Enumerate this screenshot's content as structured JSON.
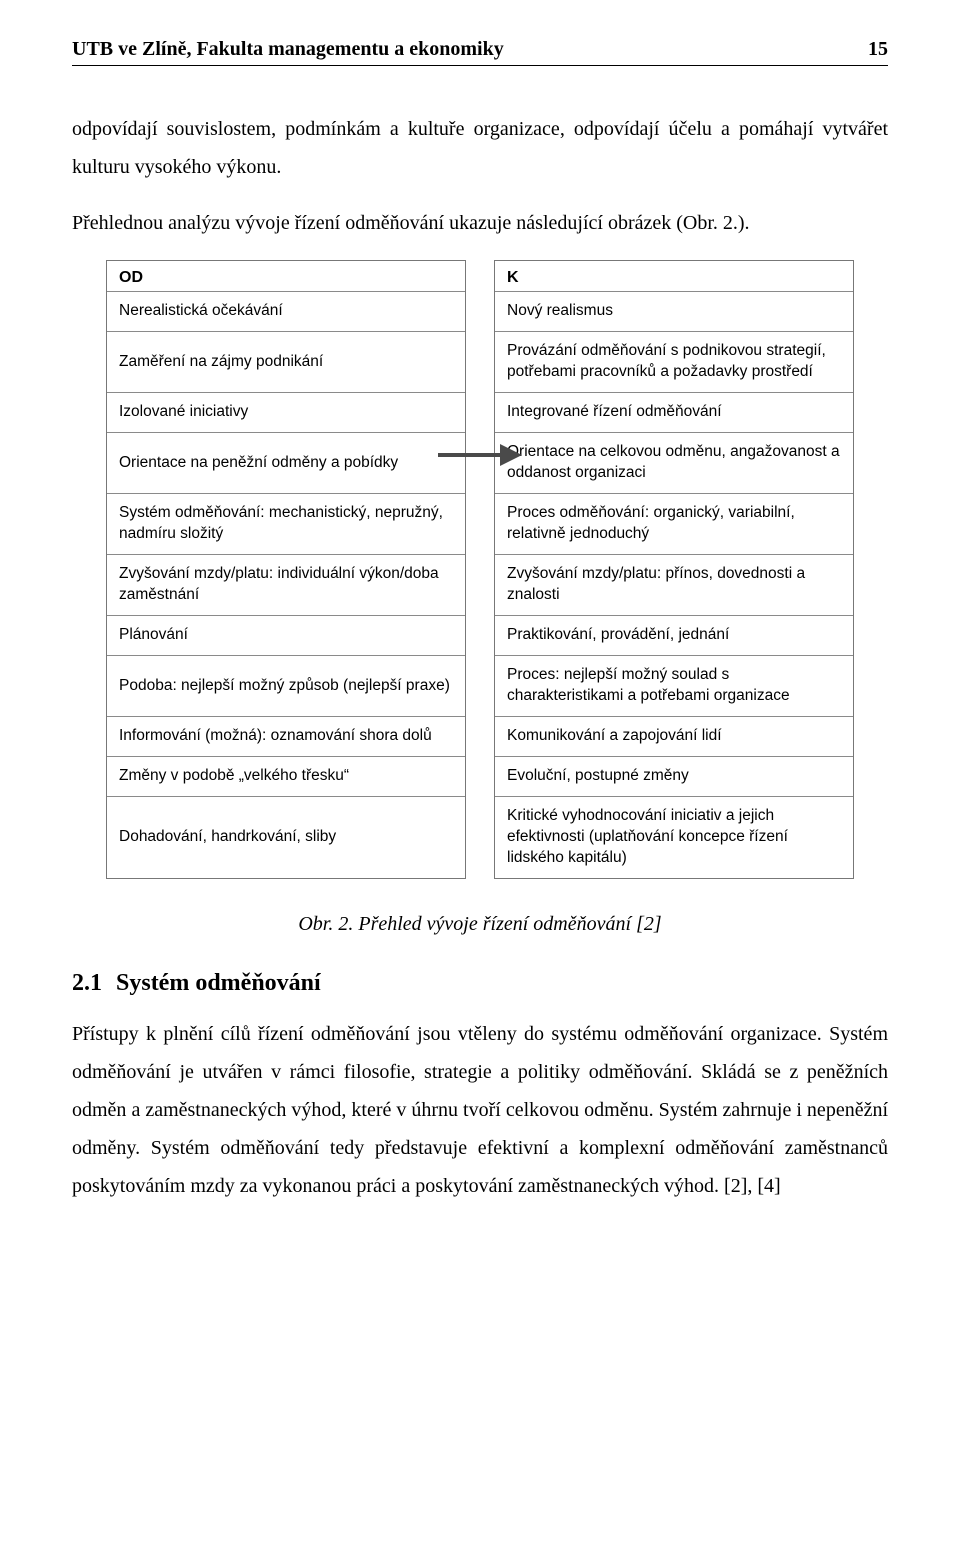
{
  "header": {
    "left": "UTB ve Zlíně, Fakulta managementu a ekonomiky",
    "page_number": "15"
  },
  "paragraphs": {
    "p1": "odpovídají souvislostem, podmínkám a kultuře organizace, odpovídají účelu a pomáhají vytvářet kulturu vysokého výkonu.",
    "p2": "Přehlednou analýzu vývoje řízení odměňování ukazuje následující obrázek (Obr. 2.).",
    "p3": "Přístupy k plnění cílů řízení odměňování jsou vtěleny do systému odměňování organizace. Systém odměňování je utvářen v rámci filosofie, strategie a politiky odměňování. Skládá se z peněžních odměn a zaměstnaneckých výhod, které v úhrnu tvoří celkovou odměnu. Systém zahrnuje i nepeněžní odměny. Systém odměňování tedy představuje efektivní a komplexní odměňování zaměstnanců poskytováním mzdy za vykonanou práci a poskytování zaměstnaneckých výhod. [2], [4]"
  },
  "figure": {
    "arrow_color": "#4a4a4a",
    "left_header": "OD",
    "right_header": "K",
    "left_rows": [
      "Nerealistická očekávání",
      "Zaměření na zájmy podnikání",
      "Izolované iniciativy",
      "Orientace na peněžní odměny a pobídky",
      "Systém odměňování: mechanistický, nepružný, nadmíru složitý",
      "Zvyšování mzdy/platu: individuální výkon/doba zaměstnání",
      "Plánování",
      "Podoba: nejlepší možný způsob (nejlepší praxe)",
      "Informování (možná): oznamování shora dolů",
      "Změny v podobě „velkého třesku“",
      "Dohadování, handrkování, sliby"
    ],
    "right_rows": [
      "Nový realismus",
      "Provázání odměňování s podnikovou strategií, potřebami pracovníků a  požadavky prostředí",
      "Integrované řízení odměňování",
      "Orientace na celkovou odměnu, angažovanost a oddanost organizaci",
      "Proces odměňování: organický, variabilní, relativně jednoduchý",
      "Zvyšování mzdy/platu: přínos, dovednosti a znalosti",
      "Praktikování, provádění, jednání",
      "Proces: nejlepší možný soulad s charakteristikami a potřebami organizace",
      "Komunikování a zapojování lidí",
      "Evoluční, postupné změny",
      "Kritické vyhodnocování iniciativ a jejich efektivnosti (uplatňování koncepce řízení lidského kapitálu)"
    ],
    "caption": "Obr. 2. Přehled vývoje řízení odměňování [2]"
  },
  "section": {
    "number": "2.1",
    "title": "Systém odměňování"
  }
}
